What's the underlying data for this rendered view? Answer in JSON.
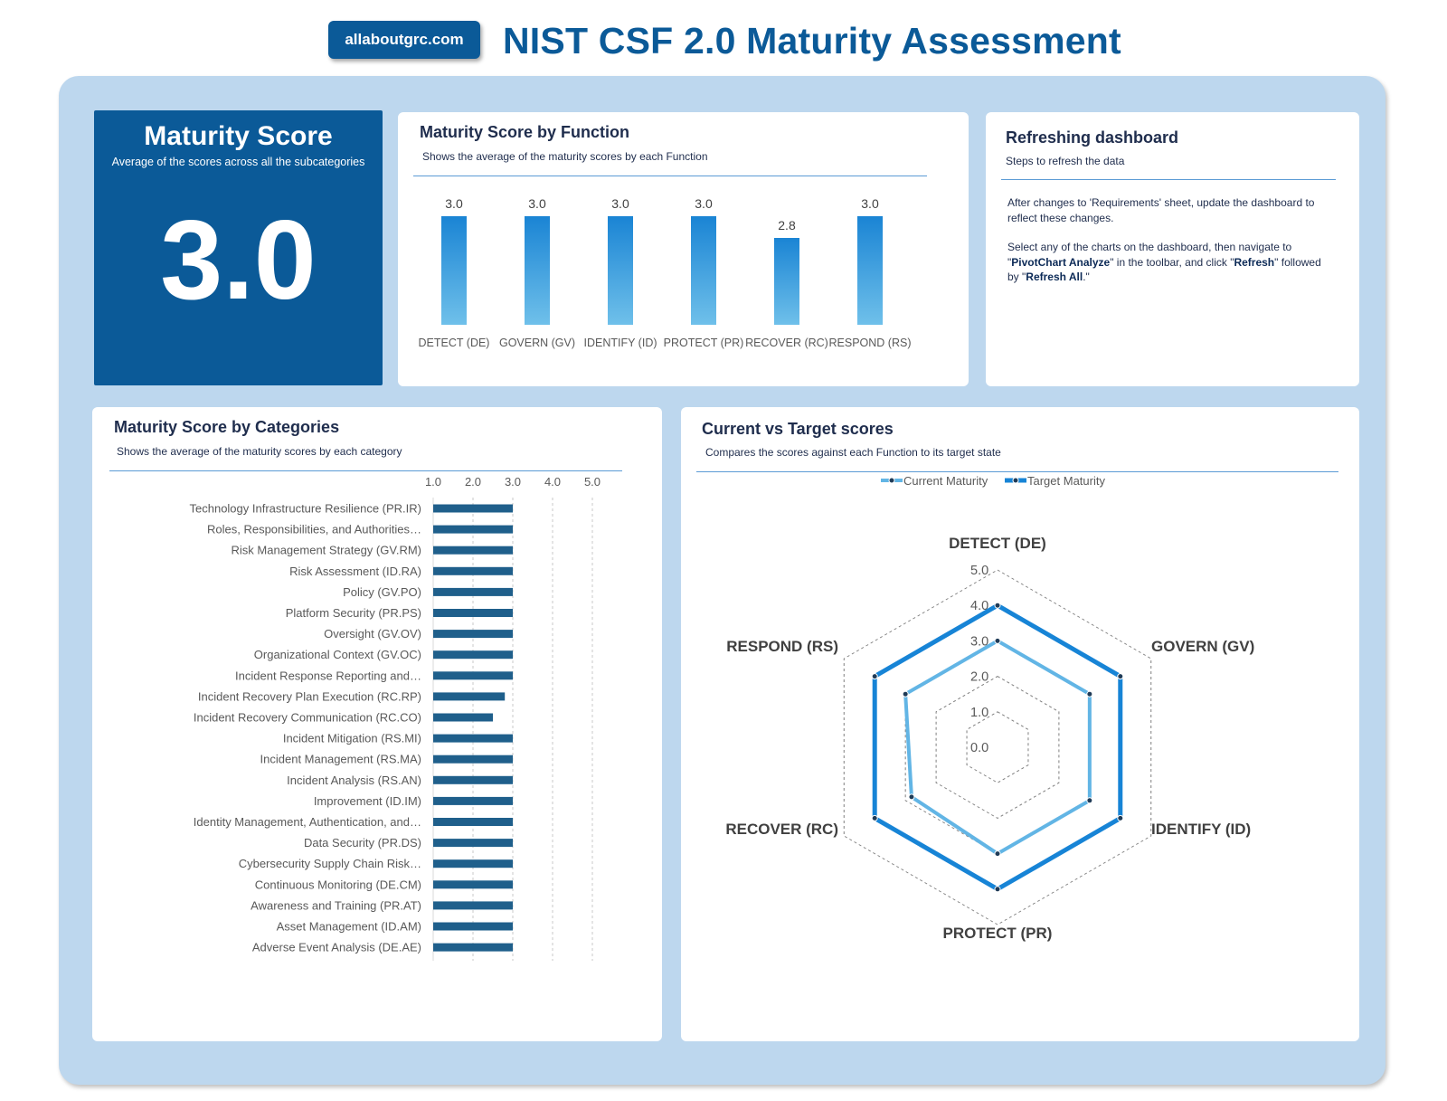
{
  "header": {
    "brand": "allaboutgrc.com",
    "title": "NIST CSF 2.0 Maturity Assessment"
  },
  "score_card": {
    "title": "Maturity Score",
    "subtitle": "Average of the scores across all the subcategories",
    "value": "3.0"
  },
  "function_card": {
    "title": "Maturity Score by Function",
    "subtitle": "Shows the average of the maturity scores by each Function"
  },
  "refresh_card": {
    "title": "Refreshing dashboard",
    "subtitle": "Steps to refresh the data",
    "para1": "After  changes to 'Requirements' sheet, update the dashboard to reflect these changes.",
    "para2_a": "Select any of the charts on the dashboard, then navigate to \"",
    "para2_b": "PivotChart Analyze",
    "para2_c": "\" in the toolbar, and click \"",
    "para2_d": "Refresh",
    "para2_e": "\" followed by \"",
    "para2_f": "Refresh All",
    "para2_g": ".\""
  },
  "categories_card": {
    "title": "Maturity Score by Categories",
    "subtitle": "Shows the average of the maturity scores by each category"
  },
  "radar_card": {
    "title": "Current vs Target scores",
    "subtitle": "Compares the scores against each Function to its target state"
  },
  "colors": {
    "brand": "#0b5a98",
    "frame": "#bdd7ee",
    "bar_top": "#1a84d4",
    "bar_bottom": "#6fc0ea",
    "hbar": "#1f5f8b",
    "current": "#62b5e5",
    "target": "#1784d6"
  },
  "chart_data": [
    {
      "type": "bar",
      "categories": [
        "DETECT (DE)",
        "GOVERN (GV)",
        "IDENTIFY (ID)",
        "PROTECT (PR)",
        "RECOVER (RC)",
        "RESPOND (RS)"
      ],
      "values": [
        3.0,
        3.0,
        3.0,
        3.0,
        2.8,
        3.0
      ],
      "data_labels": [
        "3.0",
        "3.0",
        "3.0",
        "3.0",
        "2.8",
        "3.0"
      ],
      "axis_min": 2.0,
      "title": "Maturity Score by Function"
    },
    {
      "type": "bar",
      "orientation": "horizontal",
      "categories": [
        "Technology Infrastructure Resilience (PR.IR)",
        "Roles, Responsibilities, and Authorities…",
        "Risk Management Strategy (GV.RM)",
        "Risk Assessment (ID.RA)",
        "Policy (GV.PO)",
        "Platform Security (PR.PS)",
        "Oversight (GV.OV)",
        "Organizational Context (GV.OC)",
        "Incident Response Reporting and…",
        "Incident Recovery Plan Execution (RC.RP)",
        "Incident Recovery Communication (RC.CO)",
        "Incident Mitigation (RS.MI)",
        "Incident Management (RS.MA)",
        "Incident Analysis (RS.AN)",
        "Improvement (ID.IM)",
        "Identity Management, Authentication, and…",
        "Data Security (PR.DS)",
        "Cybersecurity Supply Chain Risk…",
        "Continuous Monitoring (DE.CM)",
        "Awareness and Training (PR.AT)",
        "Asset Management (ID.AM)",
        "Adverse Event Analysis (DE.AE)"
      ],
      "values": [
        3.0,
        3.0,
        3.0,
        3.0,
        3.0,
        3.0,
        3.0,
        3.0,
        3.0,
        2.8,
        2.5,
        3.0,
        3.0,
        3.0,
        3.0,
        3.0,
        3.0,
        3.0,
        3.0,
        3.0,
        3.0,
        3.0
      ],
      "xlim": [
        1.0,
        5.0
      ],
      "ticks": [
        "1.0",
        "2.0",
        "3.0",
        "4.0",
        "5.0"
      ],
      "grid": "vertical dashed",
      "title": "Maturity Score by Categories"
    },
    {
      "type": "radar",
      "axes": [
        "DETECT (DE)",
        "GOVERN (GV)",
        "IDENTIFY (ID)",
        "PROTECT (PR)",
        "RECOVER (RC)",
        "RESPOND (RS)"
      ],
      "series": [
        {
          "name": "Current Maturity",
          "values": [
            3.0,
            3.0,
            3.0,
            3.0,
            2.8,
            3.0
          ]
        },
        {
          "name": "Target Maturity",
          "values": [
            4.0,
            4.0,
            4.0,
            4.0,
            4.0,
            4.0
          ]
        }
      ],
      "rlim": [
        0.0,
        5.0
      ],
      "ticks": [
        "0.0",
        "1.0",
        "2.0",
        "3.0",
        "4.0",
        "5.0"
      ],
      "legend": "top",
      "title": "Current vs Target scores"
    }
  ]
}
